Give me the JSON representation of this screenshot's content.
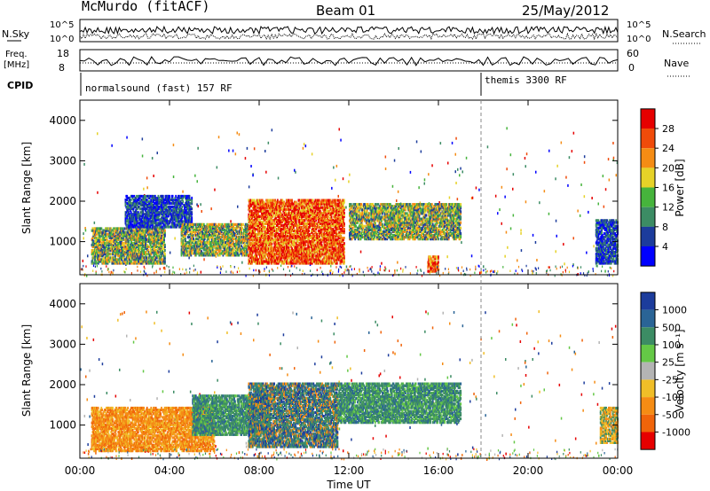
{
  "header": {
    "station": "McMurdo (fitACF)",
    "beam": "Beam 01",
    "date": "25/May/2012"
  },
  "top_panels": {
    "nsky_label": "N.Sky",
    "nsky_ticks": [
      "10^5",
      "10^0"
    ],
    "nsearch_label": "N.Search",
    "nsearch_ticks": [
      "10^5",
      "10^0"
    ],
    "freq_label": "Freq.",
    "freq_unit": "[MHz]",
    "freq_ticks": [
      "18",
      "8"
    ],
    "nave_label": "Nave",
    "nave_ticks": [
      "60",
      "0"
    ],
    "cpid_label": "CPID",
    "cpid_segments": [
      {
        "label": "normalsound (fast) 157 RF",
        "start_hour": 0
      },
      {
        "label": "themis 3300 RF",
        "start_hour": 18
      }
    ]
  },
  "x_axis": {
    "label": "Time UT",
    "ticks": [
      "00:00",
      "04:00",
      "08:00",
      "12:00",
      "16:00",
      "20:00",
      "00:00"
    ]
  },
  "colors": {
    "power": [
      "#0000ff",
      "#1c3c9c",
      "#3c8c64",
      "#46b43c",
      "#e6d228",
      "#f58c14",
      "#f04b0a",
      "#e60000"
    ],
    "velocity": [
      "#1c3c9c",
      "#2a6496",
      "#3c8c64",
      "#64c846",
      "#b4b4b4",
      "#f0be28",
      "#f58c14",
      "#f0640a",
      "#e60000"
    ]
  },
  "chart_data": [
    {
      "type": "heatmap",
      "name": "power",
      "ylabel": "Slant Range [km]",
      "xlabel": "",
      "xlim": [
        0,
        24
      ],
      "ylim": [
        180,
        4500
      ],
      "yticks": [
        "1000",
        "2000",
        "3000",
        "4000"
      ],
      "colorbar": {
        "label": "Power [dB]",
        "ticks": [
          "4",
          "8",
          "12",
          "16",
          "20",
          "24",
          "28"
        ],
        "range": [
          0,
          32
        ]
      },
      "regions": [
        {
          "t0": 0.5,
          "t1": 3.8,
          "r0": 500,
          "r1": 1400,
          "level": "mid"
        },
        {
          "t0": 2.0,
          "t1": 5.0,
          "r0": 1400,
          "r1": 2200,
          "level": "low"
        },
        {
          "t0": 4.5,
          "t1": 7.5,
          "r0": 700,
          "r1": 1500,
          "level": "mid"
        },
        {
          "t0": 7.5,
          "t1": 11.8,
          "r0": 500,
          "r1": 2100,
          "level": "high"
        },
        {
          "t0": 12.0,
          "t1": 17.0,
          "r0": 1100,
          "r1": 2000,
          "level": "mid"
        },
        {
          "t0": 15.5,
          "t1": 16.0,
          "r0": 300,
          "r1": 700,
          "level": "high"
        },
        {
          "t0": 23.0,
          "t1": 24.0,
          "r0": 500,
          "r1": 1600,
          "level": "low"
        }
      ]
    },
    {
      "type": "heatmap",
      "name": "velocity",
      "ylabel": "Slant Range [km]",
      "xlabel": "Time UT",
      "xlim": [
        0,
        24
      ],
      "ylim": [
        180,
        4500
      ],
      "yticks": [
        "1000",
        "2000",
        "3000",
        "4000"
      ],
      "colorbar": {
        "label": "Velocity [m s⁻¹]",
        "ticks": [
          "1000",
          "500",
          "100",
          "25",
          "-25",
          "-100",
          "-500",
          "-1000"
        ],
        "range": [
          -1000,
          1000
        ]
      },
      "regions": [
        {
          "t0": 0.5,
          "t1": 6.0,
          "r0": 400,
          "r1": 1500,
          "level": "orange"
        },
        {
          "t0": 5.0,
          "t1": 8.5,
          "r0": 800,
          "r1": 1800,
          "level": "green"
        },
        {
          "t0": 7.5,
          "t1": 11.5,
          "r0": 500,
          "r1": 2100,
          "level": "blue-green"
        },
        {
          "t0": 11.5,
          "t1": 17.0,
          "r0": 1100,
          "r1": 2100,
          "level": "green"
        },
        {
          "t0": 23.2,
          "t1": 24.0,
          "r0": 600,
          "r1": 1500,
          "level": "green-orange"
        }
      ]
    }
  ]
}
